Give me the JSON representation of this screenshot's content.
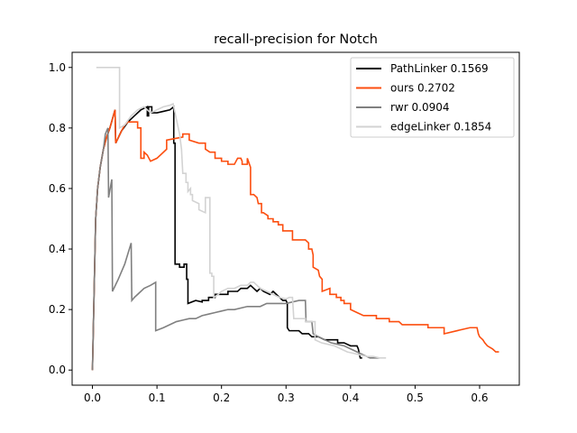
{
  "chart_data": {
    "type": "line",
    "title": "recall-precision for Notch",
    "xlabel": "",
    "ylabel": "",
    "xlim": [
      -0.0315,
      0.6615
    ],
    "ylim": [
      -0.05,
      1.05
    ],
    "xticks": [
      0.0,
      0.1,
      0.2,
      0.3,
      0.4,
      0.5,
      0.6
    ],
    "xtick_labels": [
      "0.0",
      "0.1",
      "0.2",
      "0.3",
      "0.4",
      "0.5",
      "0.6"
    ],
    "yticks": [
      0.0,
      0.2,
      0.4,
      0.6,
      0.8,
      1.0
    ],
    "ytick_labels": [
      "0.0",
      "0.2",
      "0.4",
      "0.6",
      "0.8",
      "1.0"
    ],
    "grid": false,
    "legend_position": "top-right",
    "series": [
      {
        "name": "PathLinker 0.1569",
        "color": "#000000",
        "points": [
          [
            0.0,
            0.0
          ],
          [
            0.003,
            0.3
          ],
          [
            0.005,
            0.5
          ],
          [
            0.008,
            0.6
          ],
          [
            0.012,
            0.67
          ],
          [
            0.017,
            0.73
          ],
          [
            0.022,
            0.77
          ],
          [
            0.027,
            0.8
          ],
          [
            0.031,
            0.83
          ],
          [
            0.035,
            0.86
          ],
          [
            0.036,
            0.75
          ],
          [
            0.045,
            0.79
          ],
          [
            0.055,
            0.82
          ],
          [
            0.065,
            0.84
          ],
          [
            0.075,
            0.86
          ],
          [
            0.08,
            0.865
          ],
          [
            0.085,
            0.87
          ],
          [
            0.085,
            0.84
          ],
          [
            0.087,
            0.84
          ],
          [
            0.087,
            0.87
          ],
          [
            0.092,
            0.87
          ],
          [
            0.092,
            0.85
          ],
          [
            0.1,
            0.85
          ],
          [
            0.11,
            0.855
          ],
          [
            0.12,
            0.86
          ],
          [
            0.126,
            0.87
          ],
          [
            0.126,
            0.75
          ],
          [
            0.128,
            0.75
          ],
          [
            0.128,
            0.35
          ],
          [
            0.135,
            0.35
          ],
          [
            0.135,
            0.34
          ],
          [
            0.142,
            0.34
          ],
          [
            0.142,
            0.35
          ],
          [
            0.146,
            0.35
          ],
          [
            0.146,
            0.3
          ],
          [
            0.148,
            0.3
          ],
          [
            0.148,
            0.22
          ],
          [
            0.16,
            0.23
          ],
          [
            0.17,
            0.225
          ],
          [
            0.17,
            0.23
          ],
          [
            0.18,
            0.23
          ],
          [
            0.18,
            0.24
          ],
          [
            0.19,
            0.24
          ],
          [
            0.19,
            0.25
          ],
          [
            0.2,
            0.25
          ],
          [
            0.21,
            0.25
          ],
          [
            0.21,
            0.26
          ],
          [
            0.225,
            0.26
          ],
          [
            0.23,
            0.27
          ],
          [
            0.24,
            0.27
          ],
          [
            0.245,
            0.28
          ],
          [
            0.25,
            0.27
          ],
          [
            0.255,
            0.26
          ],
          [
            0.26,
            0.27
          ],
          [
            0.265,
            0.26
          ],
          [
            0.27,
            0.255
          ],
          [
            0.275,
            0.25
          ],
          [
            0.28,
            0.26
          ],
          [
            0.285,
            0.25
          ],
          [
            0.29,
            0.24
          ],
          [
            0.295,
            0.23
          ],
          [
            0.3,
            0.23
          ],
          [
            0.302,
            0.22
          ],
          [
            0.302,
            0.14
          ],
          [
            0.305,
            0.13
          ],
          [
            0.32,
            0.13
          ],
          [
            0.325,
            0.12
          ],
          [
            0.335,
            0.12
          ],
          [
            0.34,
            0.11
          ],
          [
            0.35,
            0.11
          ],
          [
            0.36,
            0.1
          ],
          [
            0.37,
            0.1
          ],
          [
            0.38,
            0.1
          ],
          [
            0.38,
            0.09
          ],
          [
            0.39,
            0.09
          ],
          [
            0.4,
            0.08
          ],
          [
            0.41,
            0.08
          ],
          [
            0.412,
            0.07
          ],
          [
            0.415,
            0.04
          ],
          [
            0.418,
            0.04
          ]
        ]
      },
      {
        "name": "ours 0.2702",
        "color": "#FC4E0F",
        "points": [
          [
            0.0,
            0.0
          ],
          [
            0.003,
            0.3
          ],
          [
            0.005,
            0.5
          ],
          [
            0.008,
            0.6
          ],
          [
            0.012,
            0.67
          ],
          [
            0.017,
            0.73
          ],
          [
            0.022,
            0.77
          ],
          [
            0.027,
            0.8
          ],
          [
            0.031,
            0.83
          ],
          [
            0.035,
            0.86
          ],
          [
            0.036,
            0.75
          ],
          [
            0.045,
            0.79
          ],
          [
            0.05,
            0.81
          ],
          [
            0.055,
            0.82
          ],
          [
            0.07,
            0.82
          ],
          [
            0.07,
            0.8
          ],
          [
            0.075,
            0.8
          ],
          [
            0.075,
            0.7
          ],
          [
            0.08,
            0.7
          ],
          [
            0.08,
            0.72
          ],
          [
            0.085,
            0.71
          ],
          [
            0.09,
            0.69
          ],
          [
            0.1,
            0.7
          ],
          [
            0.115,
            0.73
          ],
          [
            0.115,
            0.76
          ],
          [
            0.14,
            0.77
          ],
          [
            0.14,
            0.78
          ],
          [
            0.15,
            0.78
          ],
          [
            0.15,
            0.76
          ],
          [
            0.165,
            0.75
          ],
          [
            0.175,
            0.75
          ],
          [
            0.175,
            0.73
          ],
          [
            0.182,
            0.72
          ],
          [
            0.19,
            0.72
          ],
          [
            0.19,
            0.7
          ],
          [
            0.2,
            0.7
          ],
          [
            0.2,
            0.69
          ],
          [
            0.21,
            0.69
          ],
          [
            0.21,
            0.68
          ],
          [
            0.22,
            0.68
          ],
          [
            0.225,
            0.7
          ],
          [
            0.23,
            0.7
          ],
          [
            0.232,
            0.69
          ],
          [
            0.232,
            0.68
          ],
          [
            0.24,
            0.68
          ],
          [
            0.24,
            0.7
          ],
          [
            0.245,
            0.67
          ],
          [
            0.245,
            0.58
          ],
          [
            0.25,
            0.58
          ],
          [
            0.255,
            0.57
          ],
          [
            0.257,
            0.55
          ],
          [
            0.262,
            0.55
          ],
          [
            0.262,
            0.52
          ],
          [
            0.265,
            0.52
          ],
          [
            0.272,
            0.51
          ],
          [
            0.272,
            0.5
          ],
          [
            0.28,
            0.5
          ],
          [
            0.28,
            0.49
          ],
          [
            0.288,
            0.49
          ],
          [
            0.288,
            0.48
          ],
          [
            0.295,
            0.48
          ],
          [
            0.295,
            0.46
          ],
          [
            0.31,
            0.46
          ],
          [
            0.31,
            0.43
          ],
          [
            0.33,
            0.43
          ],
          [
            0.335,
            0.42
          ],
          [
            0.335,
            0.4
          ],
          [
            0.34,
            0.4
          ],
          [
            0.342,
            0.38
          ],
          [
            0.342,
            0.34
          ],
          [
            0.35,
            0.33
          ],
          [
            0.352,
            0.31
          ],
          [
            0.356,
            0.3
          ],
          [
            0.356,
            0.26
          ],
          [
            0.368,
            0.27
          ],
          [
            0.368,
            0.25
          ],
          [
            0.378,
            0.25
          ],
          [
            0.378,
            0.24
          ],
          [
            0.385,
            0.24
          ],
          [
            0.385,
            0.23
          ],
          [
            0.39,
            0.23
          ],
          [
            0.39,
            0.22
          ],
          [
            0.4,
            0.22
          ],
          [
            0.4,
            0.2
          ],
          [
            0.41,
            0.19
          ],
          [
            0.42,
            0.18
          ],
          [
            0.44,
            0.18
          ],
          [
            0.44,
            0.17
          ],
          [
            0.46,
            0.17
          ],
          [
            0.46,
            0.16
          ],
          [
            0.475,
            0.16
          ],
          [
            0.48,
            0.15
          ],
          [
            0.52,
            0.15
          ],
          [
            0.52,
            0.14
          ],
          [
            0.545,
            0.14
          ],
          [
            0.545,
            0.12
          ],
          [
            0.585,
            0.14
          ],
          [
            0.596,
            0.14
          ],
          [
            0.598,
            0.12
          ],
          [
            0.6,
            0.11
          ],
          [
            0.605,
            0.1
          ],
          [
            0.608,
            0.09
          ],
          [
            0.612,
            0.08
          ],
          [
            0.62,
            0.07
          ],
          [
            0.625,
            0.06
          ],
          [
            0.63,
            0.06
          ]
        ]
      },
      {
        "name": "rwr 0.0904",
        "color": "#808080",
        "points": [
          [
            0.0,
            0.0
          ],
          [
            0.003,
            0.3
          ],
          [
            0.005,
            0.5
          ],
          [
            0.008,
            0.6
          ],
          [
            0.012,
            0.67
          ],
          [
            0.017,
            0.73
          ],
          [
            0.02,
            0.78
          ],
          [
            0.024,
            0.8
          ],
          [
            0.025,
            0.57
          ],
          [
            0.03,
            0.63
          ],
          [
            0.031,
            0.26
          ],
          [
            0.04,
            0.3
          ],
          [
            0.05,
            0.35
          ],
          [
            0.06,
            0.42
          ],
          [
            0.061,
            0.23
          ],
          [
            0.065,
            0.24
          ],
          [
            0.07,
            0.25
          ],
          [
            0.075,
            0.26
          ],
          [
            0.08,
            0.27
          ],
          [
            0.09,
            0.28
          ],
          [
            0.098,
            0.29
          ],
          [
            0.098,
            0.13
          ],
          [
            0.11,
            0.14
          ],
          [
            0.12,
            0.15
          ],
          [
            0.13,
            0.16
          ],
          [
            0.14,
            0.165
          ],
          [
            0.15,
            0.17
          ],
          [
            0.16,
            0.17
          ],
          [
            0.17,
            0.18
          ],
          [
            0.18,
            0.185
          ],
          [
            0.19,
            0.19
          ],
          [
            0.2,
            0.195
          ],
          [
            0.21,
            0.2
          ],
          [
            0.22,
            0.2
          ],
          [
            0.24,
            0.21
          ],
          [
            0.26,
            0.21
          ],
          [
            0.27,
            0.22
          ],
          [
            0.285,
            0.22
          ],
          [
            0.3,
            0.22
          ],
          [
            0.32,
            0.23
          ],
          [
            0.33,
            0.23
          ],
          [
            0.331,
            0.16
          ],
          [
            0.34,
            0.16
          ],
          [
            0.342,
            0.12
          ],
          [
            0.35,
            0.11
          ],
          [
            0.36,
            0.1
          ],
          [
            0.37,
            0.09
          ],
          [
            0.38,
            0.085
          ],
          [
            0.39,
            0.08
          ],
          [
            0.4,
            0.07
          ],
          [
            0.41,
            0.06
          ],
          [
            0.42,
            0.05
          ],
          [
            0.43,
            0.04
          ],
          [
            0.445,
            0.04
          ]
        ]
      },
      {
        "name": "edgeLinker 0.1854",
        "color": "#D3D3D3",
        "points": [
          [
            0.006,
            1.0
          ],
          [
            0.042,
            1.0
          ],
          [
            0.042,
            0.8
          ],
          [
            0.05,
            0.81
          ],
          [
            0.06,
            0.84
          ],
          [
            0.07,
            0.86
          ],
          [
            0.08,
            0.87
          ],
          [
            0.09,
            0.85
          ],
          [
            0.1,
            0.86
          ],
          [
            0.11,
            0.87
          ],
          [
            0.12,
            0.875
          ],
          [
            0.125,
            0.88
          ],
          [
            0.13,
            0.83
          ],
          [
            0.135,
            0.78
          ],
          [
            0.138,
            0.73
          ],
          [
            0.14,
            0.65
          ],
          [
            0.145,
            0.65
          ],
          [
            0.145,
            0.62
          ],
          [
            0.148,
            0.62
          ],
          [
            0.148,
            0.59
          ],
          [
            0.152,
            0.6
          ],
          [
            0.152,
            0.58
          ],
          [
            0.155,
            0.58
          ],
          [
            0.155,
            0.56
          ],
          [
            0.165,
            0.55
          ],
          [
            0.165,
            0.53
          ],
          [
            0.175,
            0.52
          ],
          [
            0.175,
            0.57
          ],
          [
            0.182,
            0.57
          ],
          [
            0.182,
            0.32
          ],
          [
            0.185,
            0.32
          ],
          [
            0.185,
            0.31
          ],
          [
            0.188,
            0.31
          ],
          [
            0.188,
            0.24
          ],
          [
            0.195,
            0.25
          ],
          [
            0.2,
            0.26
          ],
          [
            0.21,
            0.27
          ],
          [
            0.22,
            0.27
          ],
          [
            0.23,
            0.28
          ],
          [
            0.24,
            0.28
          ],
          [
            0.245,
            0.29
          ],
          [
            0.25,
            0.29
          ],
          [
            0.255,
            0.28
          ],
          [
            0.26,
            0.27
          ],
          [
            0.27,
            0.26
          ],
          [
            0.28,
            0.25
          ],
          [
            0.29,
            0.24
          ],
          [
            0.3,
            0.235
          ],
          [
            0.305,
            0.24
          ],
          [
            0.31,
            0.24
          ],
          [
            0.312,
            0.17
          ],
          [
            0.33,
            0.17
          ],
          [
            0.33,
            0.16
          ],
          [
            0.345,
            0.16
          ],
          [
            0.345,
            0.1
          ],
          [
            0.355,
            0.09
          ],
          [
            0.365,
            0.085
          ],
          [
            0.375,
            0.08
          ],
          [
            0.385,
            0.07
          ],
          [
            0.395,
            0.06
          ],
          [
            0.405,
            0.055
          ],
          [
            0.415,
            0.05
          ],
          [
            0.425,
            0.045
          ],
          [
            0.435,
            0.045
          ],
          [
            0.445,
            0.04
          ],
          [
            0.455,
            0.04
          ]
        ]
      }
    ]
  }
}
